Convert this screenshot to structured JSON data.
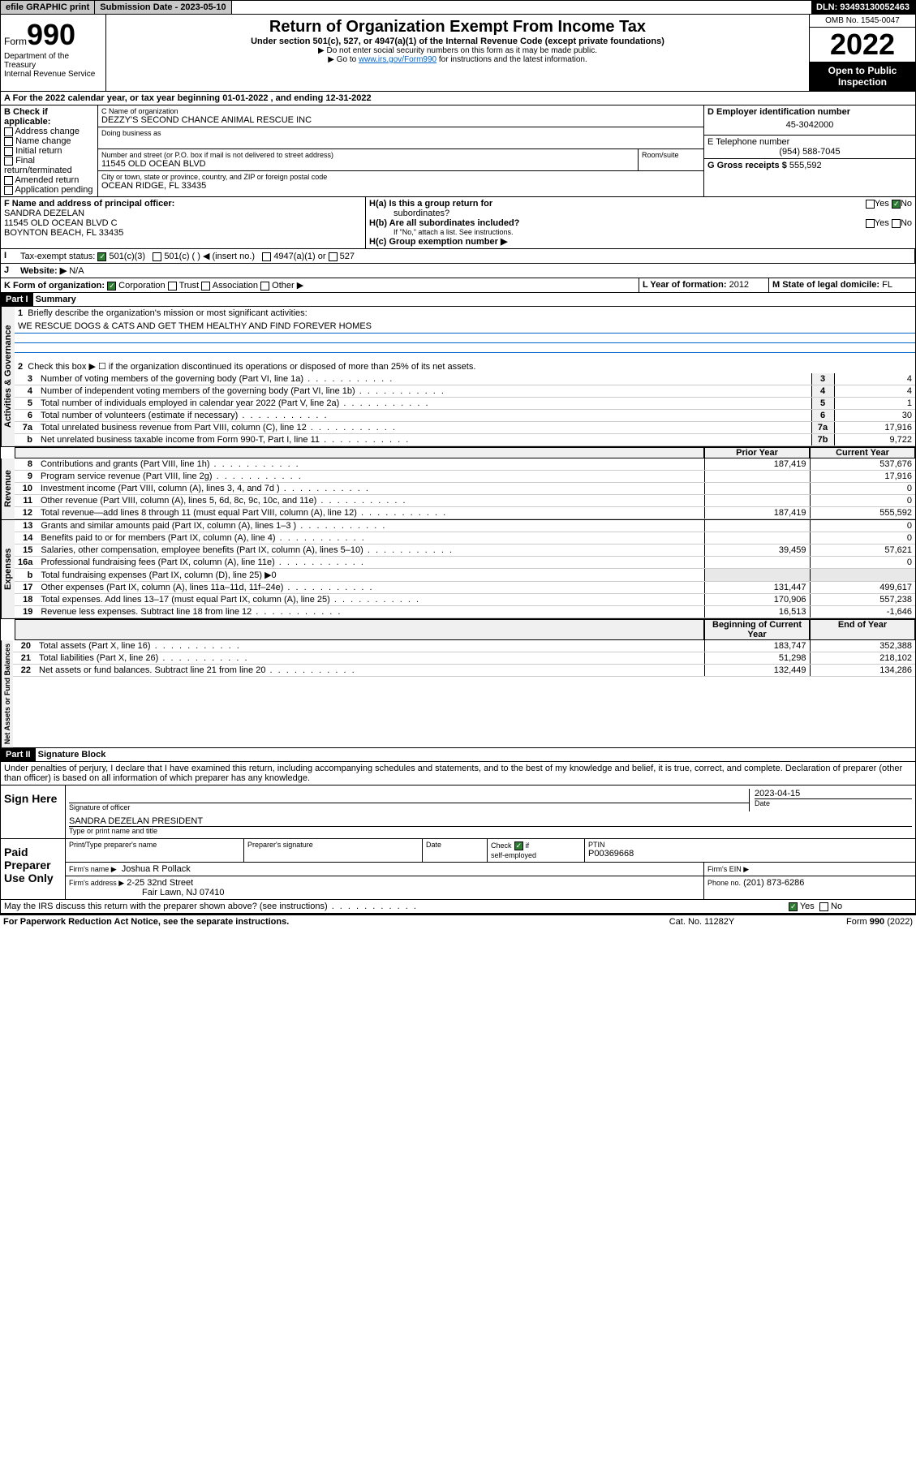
{
  "topbar": {
    "efile": "efile GRAPHIC print",
    "submission_label": "Submission Date - 2023-05-10",
    "dln": "DLN: 93493130052463"
  },
  "header": {
    "form_prefix": "Form",
    "form_number": "990",
    "dept": "Department of the Treasury",
    "irs": "Internal Revenue Service",
    "title": "Return of Organization Exempt From Income Tax",
    "subtitle": "Under section 501(c), 527, or 4947(a)(1) of the Internal Revenue Code (except private foundations)",
    "note1": "▶ Do not enter social security numbers on this form as it may be made public.",
    "note2_pre": "▶ Go to ",
    "note2_link": "www.irs.gov/Form990",
    "note2_post": " for instructions and the latest information.",
    "omb": "OMB No. 1545-0047",
    "year": "2022",
    "inspection": "Open to Public Inspection"
  },
  "line_a": "For the 2022 calendar year, or tax year beginning 01-01-2022   , and ending 12-31-2022",
  "box_b": {
    "label": "B Check if applicable:",
    "items": [
      "Address change",
      "Name change",
      "Initial return",
      "Final return/terminated",
      "Amended return",
      "Application pending"
    ]
  },
  "box_c": {
    "label": "C Name of organization",
    "name": "DEZZY'S SECOND CHANCE ANIMAL RESCUE INC",
    "dba_label": "Doing business as",
    "street_label": "Number and street (or P.O. box if mail is not delivered to street address)",
    "room_label": "Room/suite",
    "street": "11545 OLD OCEAN BLVD",
    "city_label": "City or town, state or province, country, and ZIP or foreign postal code",
    "city": "OCEAN RIDGE, FL  33435"
  },
  "box_d": {
    "label": "D Employer identification number",
    "value": "45-3042000"
  },
  "box_e": {
    "label": "E Telephone number",
    "value": "(954) 588-7045"
  },
  "box_g": {
    "label": "G Gross receipts $",
    "value": "555,592"
  },
  "box_f": {
    "label": "F Name and address of principal officer:",
    "name": "SANDRA DEZELAN",
    "addr1": "11545 OLD OCEAN BLVD C",
    "addr2": "BOYNTON BEACH, FL  33435"
  },
  "box_h": {
    "ha_label": "H(a)  Is this a group return for",
    "ha_label2": "subordinates?",
    "hb_label": "H(b)  Are all subordinates included?",
    "hb_note": "If \"No,\" attach a list. See instructions.",
    "hc_label": "H(c)  Group exemption number ▶",
    "yes": "Yes",
    "no": "No"
  },
  "box_i": {
    "label": "Tax-exempt status:",
    "opt1": "501(c)(3)",
    "opt2": "501(c) (  ) ◀ (insert no.)",
    "opt3": "4947(a)(1) or",
    "opt4": "527"
  },
  "box_j": {
    "label": "Website: ▶",
    "value": "N/A"
  },
  "box_k": {
    "label": "K Form of organization:",
    "corp": "Corporation",
    "trust": "Trust",
    "assoc": "Association",
    "other": "Other ▶"
  },
  "box_l": {
    "label": "L Year of formation:",
    "value": "2012"
  },
  "box_m": {
    "label": "M State of legal domicile:",
    "value": "FL"
  },
  "part1": {
    "hdr": "Part I",
    "title": "Summary",
    "line1_label": "Briefly describe the organization's mission or most significant activities:",
    "line1_text": "WE RESCUE DOGS & CATS AND GET THEM HEALTHY AND FIND FOREVER HOMES",
    "line2": "Check this box ▶ ☐  if the organization discontinued its operations or disposed of more than 25% of its net assets.",
    "lines_governance": [
      {
        "n": "3",
        "t": "Number of voting members of the governing body (Part VI, line 1a)",
        "box": "3",
        "v": "4"
      },
      {
        "n": "4",
        "t": "Number of independent voting members of the governing body (Part VI, line 1b)",
        "box": "4",
        "v": "4"
      },
      {
        "n": "5",
        "t": "Total number of individuals employed in calendar year 2022 (Part V, line 2a)",
        "box": "5",
        "v": "1"
      },
      {
        "n": "6",
        "t": "Total number of volunteers (estimate if necessary)",
        "box": "6",
        "v": "30"
      },
      {
        "n": "7a",
        "t": "Total unrelated business revenue from Part VIII, column (C), line 12",
        "box": "7a",
        "v": "17,916"
      },
      {
        "n": "b",
        "t": "Net unrelated business taxable income from Form 990-T, Part I, line 11",
        "box": "7b",
        "v": "9,722"
      }
    ],
    "col_prior": "Prior Year",
    "col_current": "Current Year",
    "revenue": [
      {
        "n": "8",
        "t": "Contributions and grants (Part VIII, line 1h)",
        "p": "187,419",
        "c": "537,676"
      },
      {
        "n": "9",
        "t": "Program service revenue (Part VIII, line 2g)",
        "p": "",
        "c": "17,916"
      },
      {
        "n": "10",
        "t": "Investment income (Part VIII, column (A), lines 3, 4, and 7d )",
        "p": "",
        "c": "0"
      },
      {
        "n": "11",
        "t": "Other revenue (Part VIII, column (A), lines 5, 6d, 8c, 9c, 10c, and 11e)",
        "p": "",
        "c": "0"
      },
      {
        "n": "12",
        "t": "Total revenue—add lines 8 through 11 (must equal Part VIII, column (A), line 12)",
        "p": "187,419",
        "c": "555,592"
      }
    ],
    "expenses": [
      {
        "n": "13",
        "t": "Grants and similar amounts paid (Part IX, column (A), lines 1–3 )",
        "p": "",
        "c": "0"
      },
      {
        "n": "14",
        "t": "Benefits paid to or for members (Part IX, column (A), line 4)",
        "p": "",
        "c": "0"
      },
      {
        "n": "15",
        "t": "Salaries, other compensation, employee benefits (Part IX, column (A), lines 5–10)",
        "p": "39,459",
        "c": "57,621"
      },
      {
        "n": "16a",
        "t": "Professional fundraising fees (Part IX, column (A), line 11e)",
        "p": "",
        "c": "0"
      },
      {
        "n": "b",
        "t": "Total fundraising expenses (Part IX, column (D), line 25) ▶0",
        "p": "",
        "c": ""
      },
      {
        "n": "17",
        "t": "Other expenses (Part IX, column (A), lines 11a–11d, 11f–24e)",
        "p": "131,447",
        "c": "499,617"
      },
      {
        "n": "18",
        "t": "Total expenses. Add lines 13–17 (must equal Part IX, column (A), line 25)",
        "p": "170,906",
        "c": "557,238"
      },
      {
        "n": "19",
        "t": "Revenue less expenses. Subtract line 18 from line 12",
        "p": "16,513",
        "c": "-1,646"
      }
    ],
    "col_begin": "Beginning of Current Year",
    "col_end": "End of Year",
    "netassets": [
      {
        "n": "20",
        "t": "Total assets (Part X, line 16)",
        "p": "183,747",
        "c": "352,388"
      },
      {
        "n": "21",
        "t": "Total liabilities (Part X, line 26)",
        "p": "51,298",
        "c": "218,102"
      },
      {
        "n": "22",
        "t": "Net assets or fund balances. Subtract line 21 from line 20",
        "p": "132,449",
        "c": "134,286"
      }
    ],
    "sec_gov": "Activities & Governance",
    "sec_rev": "Revenue",
    "sec_exp": "Expenses",
    "sec_net": "Net Assets or Fund Balances"
  },
  "part2": {
    "hdr": "Part II",
    "title": "Signature Block",
    "declaration": "Under penalties of perjury, I declare that I have examined this return, including accompanying schedules and statements, and to the best of my knowledge and belief, it is true, correct, and complete. Declaration of preparer (other than officer) is based on all information of which preparer has any knowledge.",
    "sign_here": "Sign Here",
    "sig_officer": "Signature of officer",
    "date": "Date",
    "date_val": "2023-04-15",
    "officer_name": "SANDRA DEZELAN  PRESIDENT",
    "type_name": "Type or print name and title",
    "paid_prep": "Paid Preparer Use Only",
    "prep_name_label": "Print/Type preparer's name",
    "prep_sig_label": "Preparer's signature",
    "check_label": "Check",
    "if_label": "if",
    "self_emp": "self-employed",
    "ptin_label": "PTIN",
    "ptin": "P00369668",
    "firm_name_label": "Firm's name   ▶",
    "firm_name": "Joshua R Pollack",
    "firm_ein_label": "Firm's EIN ▶",
    "firm_addr_label": "Firm's address ▶",
    "firm_addr1": "2-25 32nd Street",
    "firm_addr2": "Fair Lawn, NJ  07410",
    "phone_label": "Phone no.",
    "phone": "(201) 873-6286",
    "discuss": "May the IRS discuss this return with the preparer shown above? (see instructions)",
    "yes": "Yes",
    "no": "No"
  },
  "footer": {
    "paperwork": "For Paperwork Reduction Act Notice, see the separate instructions.",
    "cat": "Cat. No. 11282Y",
    "form": "Form 990 (2022)"
  }
}
